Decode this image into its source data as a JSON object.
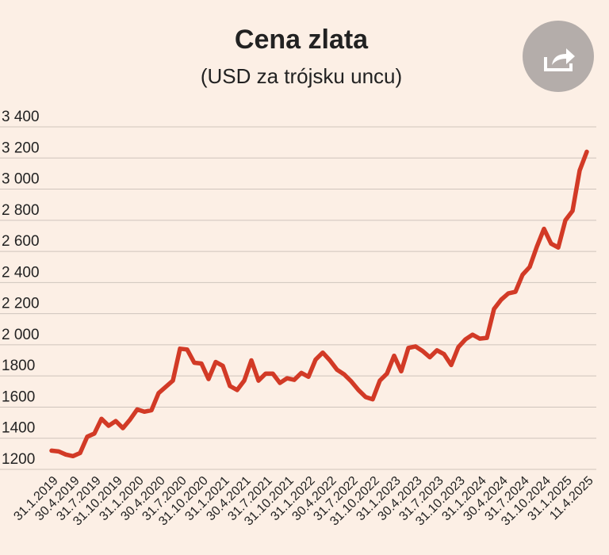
{
  "chart_data": {
    "type": "line",
    "title": "Cena zlata",
    "subtitle": "(USD za trójsku uncu)",
    "categories": [
      "31.1.2019",
      null,
      null,
      "30.4.2019",
      null,
      null,
      "31.7.2019",
      null,
      null,
      "31.10.2019",
      null,
      null,
      "31.1.2020",
      null,
      null,
      "30.4.2020",
      null,
      null,
      "31.7.2020",
      null,
      null,
      "31.10.2020",
      null,
      null,
      "31.1.2021",
      null,
      null,
      "30.4.2021",
      null,
      null,
      "31.7.2021",
      null,
      null,
      "31.10.2021",
      null,
      null,
      "31.1.2022",
      null,
      null,
      "30.4.2022",
      null,
      null,
      "31.7.2022",
      null,
      null,
      "31.10.2022",
      null,
      null,
      "31.1.2023",
      null,
      null,
      "30.4.2023",
      null,
      null,
      "31.7.2023",
      null,
      null,
      "31.10.2023",
      null,
      null,
      "31.1.2024",
      null,
      null,
      "30.4.2024",
      null,
      null,
      "31.7.2024",
      null,
      null,
      "31.10.2024",
      null,
      null,
      "31.1.2025",
      null,
      null,
      "11.4.2025"
    ],
    "series": [
      {
        "color": "#d23a26",
        "values": [
          1320,
          1315,
          1295,
          1285,
          1305,
          1410,
          1430,
          1525,
          1480,
          1510,
          1465,
          1520,
          1585,
          1570,
          1580,
          1690,
          1730,
          1770,
          1975,
          1970,
          1885,
          1880,
          1780,
          1890,
          1865,
          1735,
          1710,
          1770,
          1900,
          1770,
          1815,
          1815,
          1755,
          1785,
          1775,
          1820,
          1795,
          1905,
          1950,
          1900,
          1840,
          1810,
          1765,
          1710,
          1665,
          1650,
          1770,
          1815,
          1930,
          1830,
          1980,
          1990,
          1960,
          1920,
          1965,
          1940,
          1870,
          1985,
          2035,
          2065,
          2040,
          2045,
          2230,
          2290,
          2330,
          2340,
          2450,
          2500,
          2630,
          2745,
          2650,
          2625,
          2800,
          2860,
          3120,
          3240
        ]
      }
    ],
    "ylim": [
      1200,
      3400
    ],
    "yticks": [
      1200,
      1400,
      1600,
      1800,
      {
        "value": 2000,
        "label": "2 000"
      },
      {
        "value": 2200,
        "label": "2 200"
      },
      {
        "value": 2400,
        "label": "2 400"
      },
      {
        "value": 2600,
        "label": "2 600"
      },
      {
        "value": 2800,
        "label": "2 800"
      },
      {
        "value": 3000,
        "label": "3 000"
      },
      {
        "value": 3200,
        "label": "3 200"
      },
      {
        "value": 3400,
        "label": "3 400"
      }
    ],
    "grid": true
  }
}
